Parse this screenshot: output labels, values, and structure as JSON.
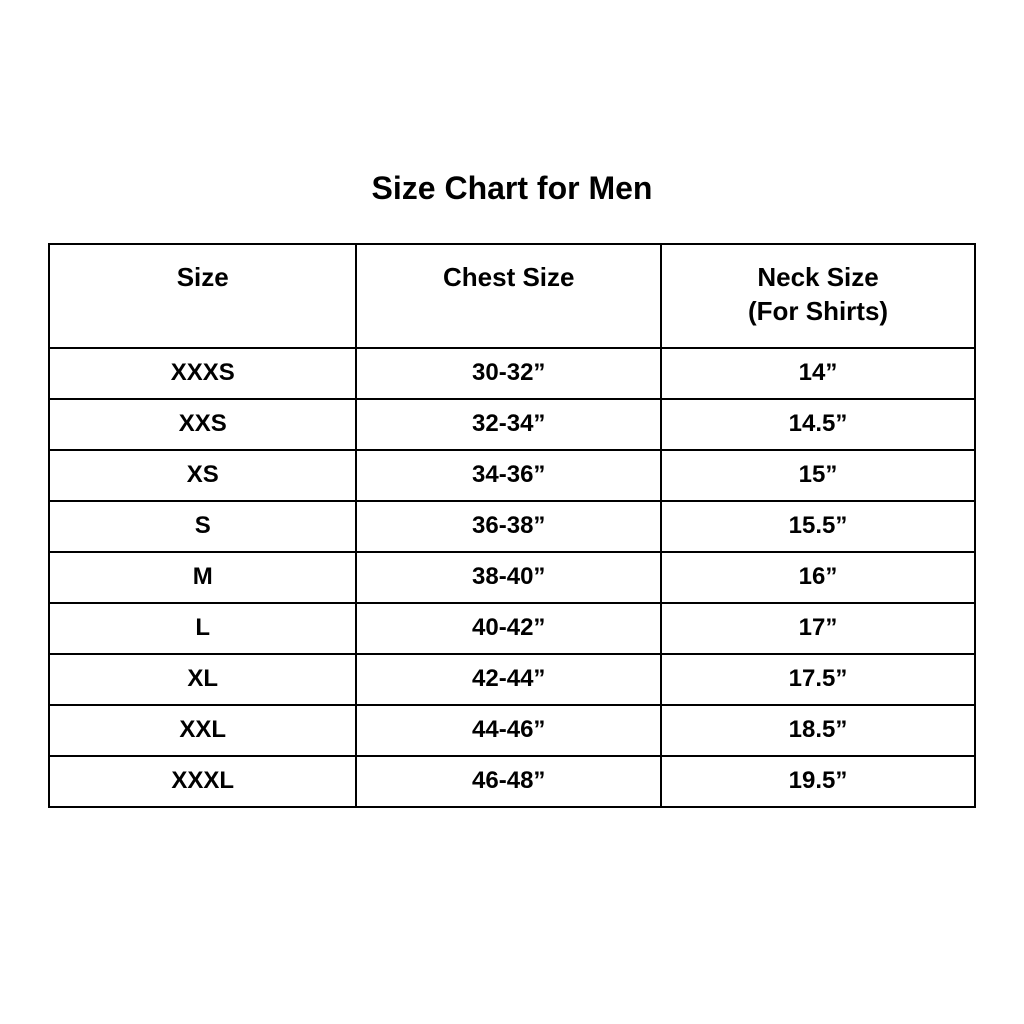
{
  "page": {
    "title": "Size Chart for Men"
  },
  "table": {
    "headers": [
      {
        "line1": "Size",
        "line2": ""
      },
      {
        "line1": "Chest Size",
        "line2": ""
      },
      {
        "line1": "Neck Size",
        "line2": "(For Shirts)"
      }
    ],
    "rows": [
      [
        "XXXS",
        "30-32”",
        "14”"
      ],
      [
        "XXS",
        "32-34”",
        "14.5”"
      ],
      [
        "XS",
        "34-36”",
        "15”"
      ],
      [
        "S",
        "36-38”",
        "15.5”"
      ],
      [
        "M",
        "38-40”",
        "16”"
      ],
      [
        "L",
        "40-42”",
        "17”"
      ],
      [
        "XL",
        "42-44”",
        "17.5”"
      ],
      [
        "XXL",
        "44-46”",
        "18.5”"
      ],
      [
        "XXXL",
        "46-48”",
        "19.5”"
      ]
    ]
  },
  "colors": {
    "background": "#ffffff",
    "text": "#000000",
    "border": "#000000"
  },
  "chart_data": {
    "type": "table",
    "title": "Size Chart for Men",
    "columns": [
      "Size",
      "Chest Size",
      "Neck Size (For Shirts)"
    ],
    "rows": [
      [
        "XXXS",
        "30-32”",
        "14”"
      ],
      [
        "XXS",
        "32-34”",
        "14.5”"
      ],
      [
        "XS",
        "34-36”",
        "15”"
      ],
      [
        "S",
        "36-38”",
        "15.5”"
      ],
      [
        "M",
        "38-40”",
        "16”"
      ],
      [
        "L",
        "40-42”",
        "17”"
      ],
      [
        "XL",
        "42-44”",
        "17.5”"
      ],
      [
        "XXL",
        "44-46”",
        "18.5”"
      ],
      [
        "XXXL",
        "46-48”",
        "19.5”"
      ]
    ],
    "layout_hints": {
      "header_two_line_column": 2,
      "all_text_bold": true,
      "alignment": "center",
      "grid": true
    }
  }
}
